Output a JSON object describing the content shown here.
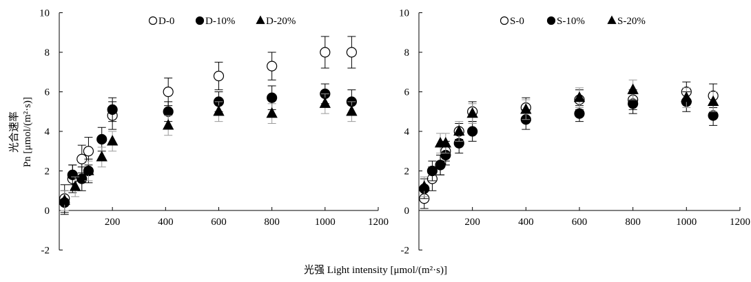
{
  "x_axis_title": "光强 Light intensity [μmol/(m²·s)]",
  "y_axis_title_cn": "光合速率",
  "y_axis_title_en": "Pn [μmol/(m²·s)]",
  "colors": {
    "ink": "#000000",
    "error_bar_light": "#999999"
  },
  "chart_data": [
    {
      "type": "scatter",
      "title": "",
      "xlabel": "",
      "ylabel": "",
      "xlim": [
        0,
        1200
      ],
      "ylim": [
        -2,
        10
      ],
      "x_ticks": [
        "200",
        "400",
        "600",
        "800",
        "1000",
        "1200"
      ],
      "y_ticks": [
        "-2",
        "0",
        "2",
        "4",
        "6",
        "8",
        "10"
      ],
      "grid": false,
      "legend_position": "top-center",
      "series": [
        {
          "name": "D-0",
          "marker": "open-circle",
          "points": [
            {
              "x": 20,
              "y": 0.6,
              "err": 0.7
            },
            {
              "x": 50,
              "y": 1.6,
              "err": 0.7
            },
            {
              "x": 85,
              "y": 2.6,
              "err": 0.7
            },
            {
              "x": 110,
              "y": 3.0,
              "err": 0.7
            },
            {
              "x": 200,
              "y": 4.8,
              "err": 0.7
            },
            {
              "x": 410,
              "y": 6.0,
              "err": 0.7
            },
            {
              "x": 600,
              "y": 6.8,
              "err": 0.7
            },
            {
              "x": 800,
              "y": 7.3,
              "err": 0.7
            },
            {
              "x": 1000,
              "y": 8.0,
              "err": 0.8
            },
            {
              "x": 1100,
              "y": 8.0,
              "err": 0.8
            }
          ]
        },
        {
          "name": "D-10%",
          "marker": "filled-circle",
          "points": [
            {
              "x": 20,
              "y": 0.4,
              "err": 0.6
            },
            {
              "x": 50,
              "y": 1.8,
              "err": 0.5
            },
            {
              "x": 85,
              "y": 1.6,
              "err": 0.6
            },
            {
              "x": 110,
              "y": 2.0,
              "err": 0.6
            },
            {
              "x": 160,
              "y": 3.6,
              "err": 0.6
            },
            {
              "x": 200,
              "y": 5.1,
              "err": 0.6
            },
            {
              "x": 410,
              "y": 5.0,
              "err": 0.5
            },
            {
              "x": 600,
              "y": 5.5,
              "err": 0.5
            },
            {
              "x": 800,
              "y": 5.7,
              "err": 0.6
            },
            {
              "x": 1000,
              "y": 5.9,
              "err": 0.5
            },
            {
              "x": 1100,
              "y": 5.5,
              "err": 0.6
            }
          ]
        },
        {
          "name": "D-20%",
          "marker": "filled-triangle",
          "points": [
            {
              "x": 20,
              "y": 0.5,
              "err": 0.5
            },
            {
              "x": 60,
              "y": 1.2,
              "err": 0.5
            },
            {
              "x": 110,
              "y": 2.0,
              "err": 0.5
            },
            {
              "x": 160,
              "y": 2.7,
              "err": 0.5
            },
            {
              "x": 200,
              "y": 3.5,
              "err": 0.5
            },
            {
              "x": 410,
              "y": 4.3,
              "err": 0.5
            },
            {
              "x": 600,
              "y": 5.0,
              "err": 0.5
            },
            {
              "x": 800,
              "y": 4.9,
              "err": 0.5
            },
            {
              "x": 1000,
              "y": 5.4,
              "err": 0.5
            },
            {
              "x": 1100,
              "y": 5.0,
              "err": 0.5
            }
          ]
        }
      ]
    },
    {
      "type": "scatter",
      "title": "",
      "xlabel": "",
      "ylabel": "",
      "xlim": [
        0,
        1200
      ],
      "ylim": [
        -2,
        10
      ],
      "x_ticks": [
        "200",
        "400",
        "600",
        "800",
        "1000",
        "1200"
      ],
      "y_ticks": [
        "-2",
        "0",
        "2",
        "4",
        "6",
        "8",
        "10"
      ],
      "grid": false,
      "legend_position": "top-center",
      "series": [
        {
          "name": "S-0",
          "marker": "open-circle",
          "points": [
            {
              "x": 20,
              "y": 0.6,
              "err": 0.5
            },
            {
              "x": 50,
              "y": 1.6,
              "err": 0.6
            },
            {
              "x": 80,
              "y": 2.3,
              "err": 0.5
            },
            {
              "x": 100,
              "y": 3.0,
              "err": 0.5
            },
            {
              "x": 150,
              "y": 4.0,
              "err": 0.4
            },
            {
              "x": 200,
              "y": 5.0,
              "err": 0.5
            },
            {
              "x": 400,
              "y": 5.2,
              "err": 0.5
            },
            {
              "x": 600,
              "y": 5.6,
              "err": 0.5
            },
            {
              "x": 800,
              "y": 5.6,
              "err": 0.5
            },
            {
              "x": 1000,
              "y": 6.0,
              "err": 0.5
            },
            {
              "x": 1100,
              "y": 5.8,
              "err": 0.6
            }
          ]
        },
        {
          "name": "S-10%",
          "marker": "filled-circle",
          "points": [
            {
              "x": 20,
              "y": 1.1,
              "err": 0.5
            },
            {
              "x": 50,
              "y": 2.0,
              "err": 0.5
            },
            {
              "x": 80,
              "y": 2.3,
              "err": 0.5
            },
            {
              "x": 100,
              "y": 2.8,
              "err": 0.5
            },
            {
              "x": 150,
              "y": 3.4,
              "err": 0.5
            },
            {
              "x": 200,
              "y": 4.0,
              "err": 0.5
            },
            {
              "x": 400,
              "y": 4.6,
              "err": 0.5
            },
            {
              "x": 600,
              "y": 4.9,
              "err": 0.4
            },
            {
              "x": 800,
              "y": 5.4,
              "err": 0.5
            },
            {
              "x": 1000,
              "y": 5.5,
              "err": 0.5
            },
            {
              "x": 1100,
              "y": 4.8,
              "err": 0.5
            }
          ]
        },
        {
          "name": "S-20%",
          "marker": "filled-triangle",
          "points": [
            {
              "x": 20,
              "y": 1.2,
              "err": 0.5
            },
            {
              "x": 80,
              "y": 3.4,
              "err": 0.5
            },
            {
              "x": 100,
              "y": 3.4,
              "err": 0.5
            },
            {
              "x": 150,
              "y": 4.0,
              "err": 0.5
            },
            {
              "x": 200,
              "y": 4.9,
              "err": 0.5
            },
            {
              "x": 400,
              "y": 5.1,
              "err": 0.5
            },
            {
              "x": 600,
              "y": 5.7,
              "err": 0.5
            },
            {
              "x": 800,
              "y": 6.1,
              "err": 0.5
            },
            {
              "x": 1000,
              "y": 5.7,
              "err": 0.5
            },
            {
              "x": 1100,
              "y": 5.5,
              "err": 0.5
            }
          ]
        }
      ]
    }
  ]
}
